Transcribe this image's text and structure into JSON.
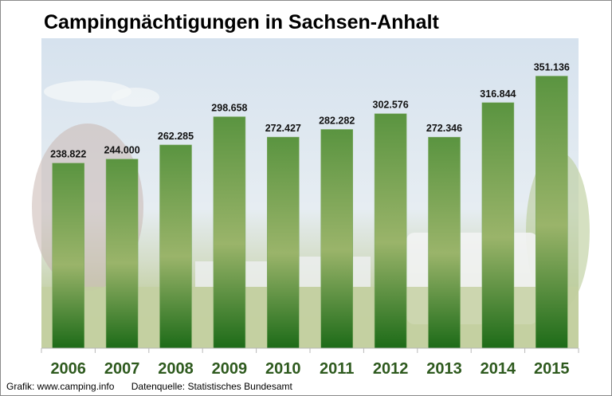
{
  "chart_data": {
    "type": "bar",
    "title": "Campingnächtigungen in Sachsen-Anhalt",
    "xlabel": "",
    "ylabel": "",
    "ylim": [
      0,
      400000
    ],
    "grid": false,
    "categories": [
      "2006",
      "2007",
      "2008",
      "2009",
      "2010",
      "2011",
      "2012",
      "2013",
      "2014",
      "2015"
    ],
    "values": [
      238822,
      244000,
      262285,
      298658,
      272427,
      282282,
      302576,
      272346,
      316844,
      351136
    ],
    "data_labels": [
      "238.822",
      "244.000",
      "262.285",
      "298.658",
      "272.427",
      "282.282",
      "302.576",
      "272.346",
      "316.844",
      "351.136"
    ]
  },
  "colors": {
    "bar_top": "#5a9440",
    "bar_mid": "#9ab46a",
    "bar_bottom": "#1d6b18",
    "year_label": "#2e5a1e"
  },
  "footer": {
    "credit": "Grafik: www.camping.info",
    "source": "Datenquelle:  Statistisches Bundesamt"
  }
}
